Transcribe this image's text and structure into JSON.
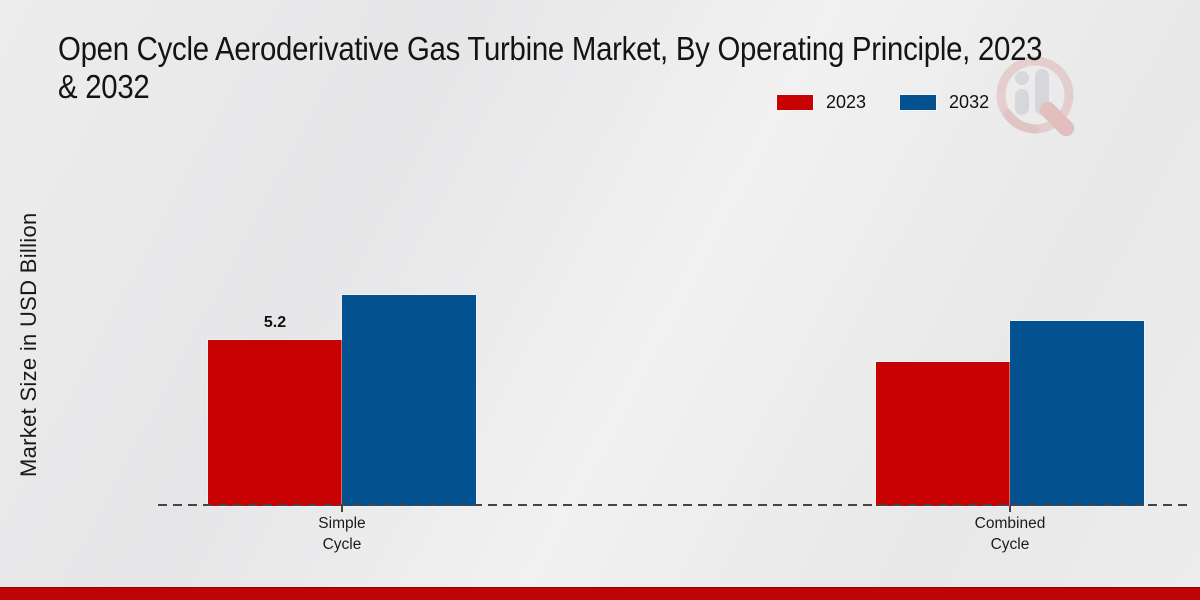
{
  "title": {
    "line1": "Open Cycle Aeroderivative Gas Turbine Market, By Operating Principle, 2023",
    "line2": "& 2032"
  },
  "chart_data": {
    "type": "bar",
    "title": "Open Cycle Aeroderivative Gas Turbine Market, By Operating Principle, 2023 & 2032",
    "ylabel": "Market Size in USD Billion",
    "xlabel": "",
    "categories": [
      "Simple Cycle",
      "Combined Cycle"
    ],
    "series": [
      {
        "name": "2023",
        "color": "#C80202",
        "values": [
          5.2,
          4.5
        ]
      },
      {
        "name": "2032",
        "color": "#03518F",
        "values": [
          6.6,
          5.8
        ]
      }
    ],
    "data_labels": [
      {
        "category_index": 0,
        "series_index": 0,
        "text": "5.2"
      }
    ],
    "ylim": [
      0,
      7
    ],
    "grid": false,
    "axis_tick_labels_visible": false,
    "legend_position": "top-right",
    "baseline_style": "dashed"
  },
  "colors": {
    "accent_red": "#C80202",
    "accent_blue": "#03518F",
    "footer_bar": "#BE0505",
    "axis_line": "#454545",
    "background": "#EAEAEA"
  },
  "watermark": {
    "name": "magnifier-bar-chart-logo"
  }
}
